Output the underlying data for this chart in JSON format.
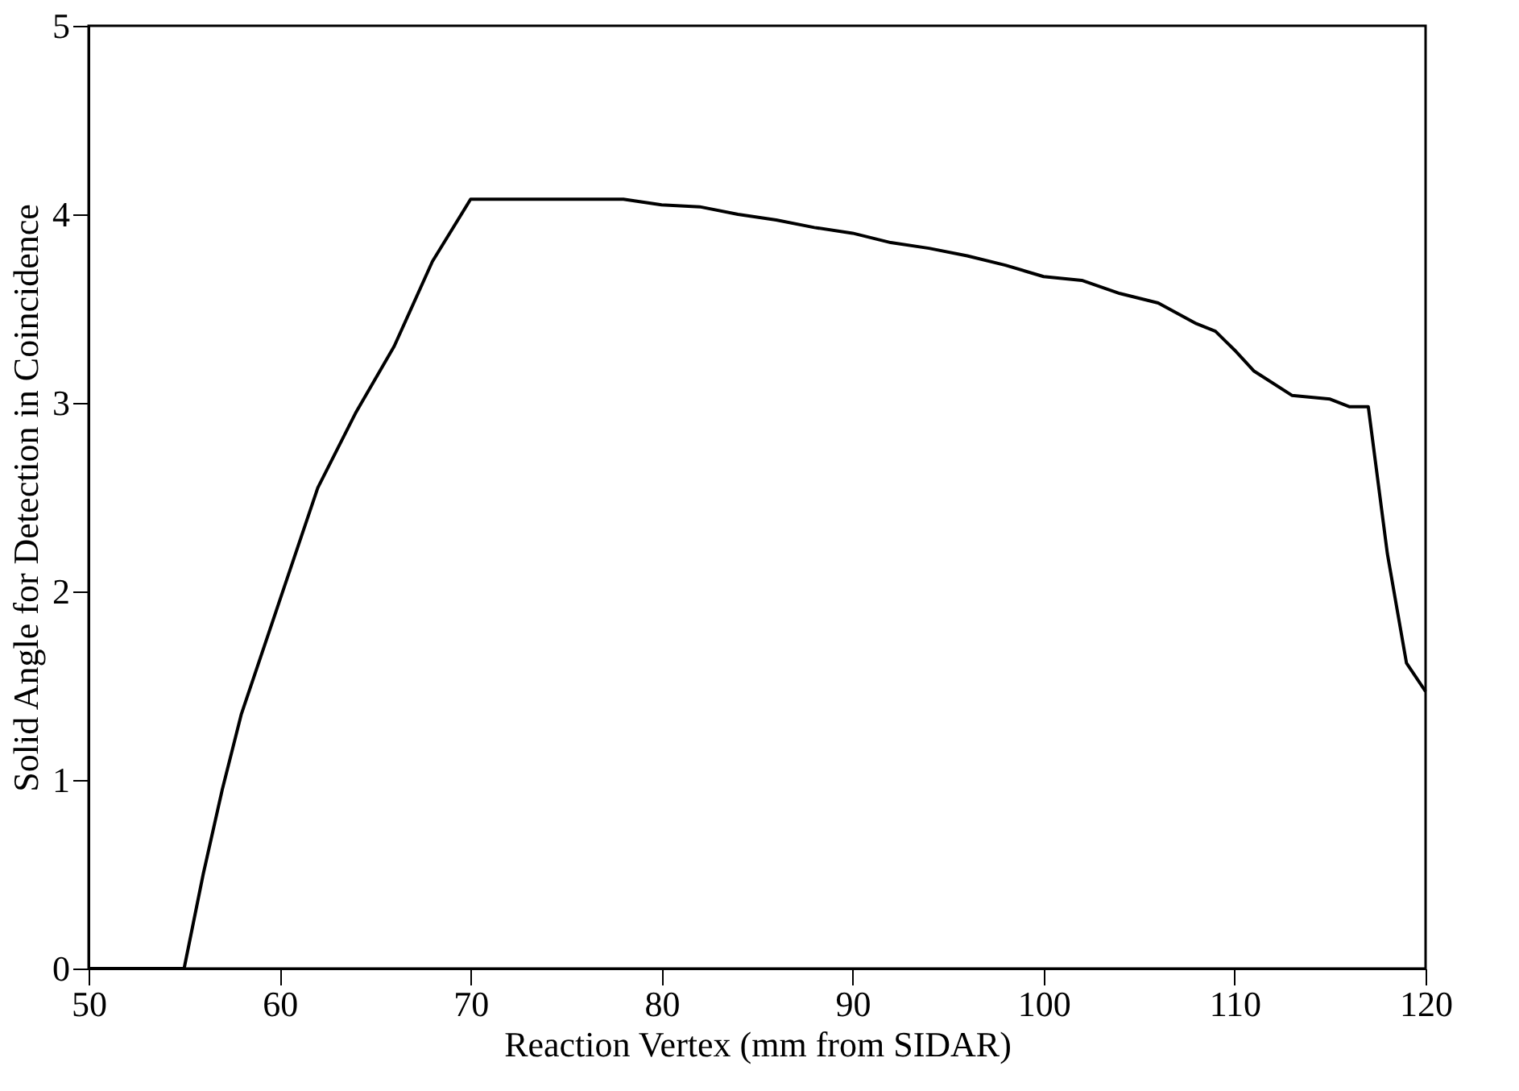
{
  "chart_data": {
    "type": "line",
    "xlabel": "Reaction Vertex (mm from SIDAR)",
    "ylabel": "Solid Angle for Detection in Coincidence",
    "x": [
      50,
      55,
      56,
      57,
      58,
      60,
      62,
      64,
      66,
      68,
      70,
      72,
      78,
      80,
      82,
      84,
      86,
      88,
      90,
      92,
      94,
      96,
      98,
      100,
      102,
      104,
      106,
      108,
      109,
      110,
      111,
      113,
      115,
      116,
      117,
      118,
      119,
      120
    ],
    "series": [
      {
        "color": "#000000",
        "values": [
          0,
          0,
          0.5,
          0.95,
          1.35,
          1.95,
          2.55,
          2.95,
          3.3,
          3.75,
          4.08,
          4.08,
          4.08,
          4.05,
          4.04,
          4.0,
          3.97,
          3.93,
          3.9,
          3.85,
          3.82,
          3.78,
          3.73,
          3.67,
          3.65,
          3.58,
          3.53,
          3.42,
          3.38,
          3.28,
          3.17,
          3.04,
          3.02,
          2.98,
          2.98,
          2.2,
          1.62,
          1.47
        ]
      }
    ],
    "xlim": [
      50,
      120
    ],
    "xticks": [
      50,
      60,
      70,
      80,
      90,
      100,
      110,
      120
    ],
    "ylim": [
      0,
      5
    ],
    "yticks": [
      0,
      1,
      2,
      3,
      4,
      5
    ],
    "grid": false,
    "line_style": "solid",
    "marker": "none"
  }
}
